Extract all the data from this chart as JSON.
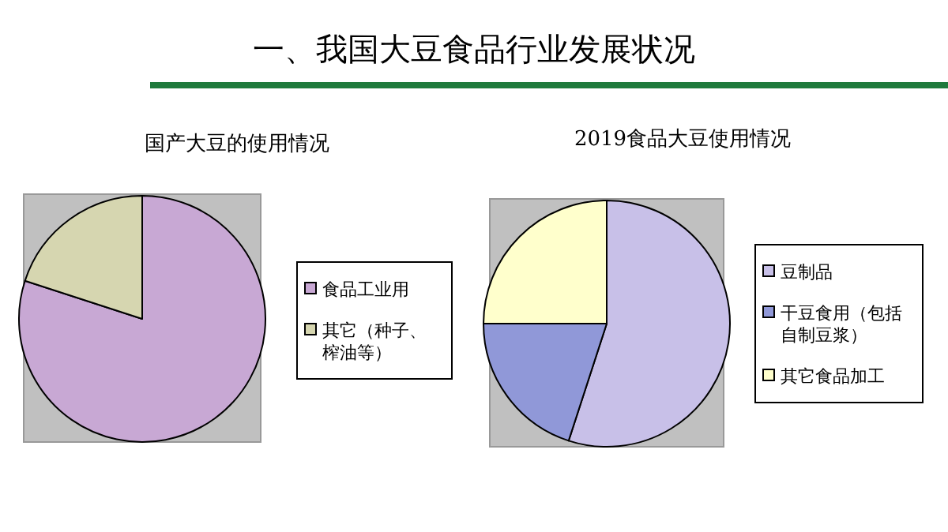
{
  "chart_data": [
    {
      "type": "pie",
      "title": "国产大豆的使用情况",
      "annotations": [
        "一、我国大豆食品行业发展状况"
      ],
      "categories": [
        "食品工业用",
        "其它（种子、榨油等）"
      ],
      "values": [
        80,
        20
      ],
      "colors": [
        "#c8a8d4",
        "#d6d6b0"
      ],
      "legend": "right"
    },
    {
      "type": "pie",
      "title": "2019食品大豆使用情况",
      "categories": [
        "豆制品",
        "干豆食用（包括自制豆浆）",
        "其它食品加工"
      ],
      "values": [
        55,
        20,
        25
      ],
      "colors": [
        "#c8c0e8",
        "#9098d8",
        "#ffffcc"
      ],
      "legend": "right"
    }
  ]
}
